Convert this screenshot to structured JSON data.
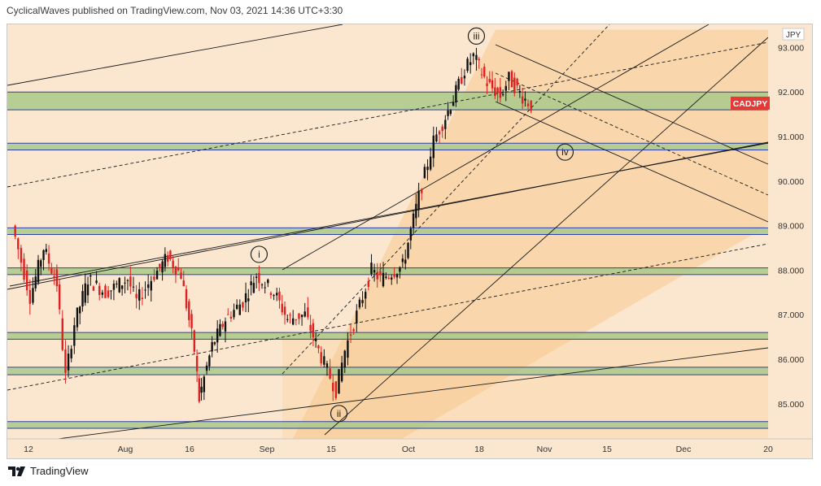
{
  "header": {
    "publisher": "CyclicalWaves published on TradingView.com, Nov 03, 2021 14:36 UTC+3:30"
  },
  "footer": {
    "brand": "TradingView",
    "logo_icon": "tradingview-logo-icon"
  },
  "chart_data": {
    "type": "candlestick",
    "symbol": "CADJPY",
    "currency": "JPY",
    "last_price_label": "CADJPY",
    "colors": {
      "up": "#111111",
      "down": "#e02020",
      "symbol_badge": "#e53935",
      "zone_fill": "#a9c98a",
      "zone_border": "#2d3fa8",
      "background": "#fbe6cf"
    },
    "y_axis": {
      "ylim": [
        84.2,
        93.5
      ],
      "ticks": [
        "93.000",
        "92.000",
        "91.000",
        "90.000",
        "89.000",
        "88.000",
        "87.000",
        "86.000",
        "85.000"
      ],
      "scale": "linear"
    },
    "x_axis": {
      "ticks": [
        "12",
        "Aug",
        "16",
        "Sep",
        "15",
        "Oct",
        "18",
        "Nov",
        "15",
        "Dec",
        "20"
      ]
    },
    "wave_labels": [
      "i",
      "ii",
      "iii",
      "iv"
    ],
    "wave_points": [
      {
        "label": "i",
        "date": "2021-09-02",
        "price": 88.1
      },
      {
        "label": "ii",
        "date": "2021-09-20",
        "price": 85.0
      },
      {
        "label": "iii",
        "date": "2021-10-21",
        "price": 93.0
      },
      {
        "label": "iv",
        "date": "2021-11-10",
        "price": 90.65
      }
    ],
    "support_resistance_zones": [
      [
        91.6,
        92.0
      ],
      [
        90.7,
        90.85
      ],
      [
        88.8,
        88.95
      ],
      [
        87.9,
        88.05
      ],
      [
        86.45,
        86.6
      ],
      [
        85.65,
        85.82
      ],
      [
        84.45,
        84.6
      ]
    ],
    "price_series_approx": [
      {
        "date": "2021-07-09",
        "close": 89.0
      },
      {
        "date": "2021-07-13",
        "close": 87.4
      },
      {
        "date": "2021-07-16",
        "close": 88.5
      },
      {
        "date": "2021-07-19",
        "close": 87.7
      },
      {
        "date": "2021-07-21",
        "close": 85.6
      },
      {
        "date": "2021-07-23",
        "close": 86.8
      },
      {
        "date": "2021-07-26",
        "close": 87.8
      },
      {
        "date": "2021-07-30",
        "close": 87.5
      },
      {
        "date": "2021-08-04",
        "close": 87.8
      },
      {
        "date": "2021-08-06",
        "close": 87.3
      },
      {
        "date": "2021-08-10",
        "close": 87.9
      },
      {
        "date": "2021-08-13",
        "close": 88.3
      },
      {
        "date": "2021-08-16",
        "close": 87.9
      },
      {
        "date": "2021-08-19",
        "close": 86.2
      },
      {
        "date": "2021-08-20",
        "close": 85.1
      },
      {
        "date": "2021-08-23",
        "close": 86.3
      },
      {
        "date": "2021-08-26",
        "close": 86.9
      },
      {
        "date": "2021-08-30",
        "close": 87.3
      },
      {
        "date": "2021-09-02",
        "close": 87.9
      },
      {
        "date": "2021-09-06",
        "close": 87.5
      },
      {
        "date": "2021-09-09",
        "close": 86.9
      },
      {
        "date": "2021-09-13",
        "close": 87.0
      },
      {
        "date": "2021-09-16",
        "close": 86.2
      },
      {
        "date": "2021-09-20",
        "close": 85.3
      },
      {
        "date": "2021-09-22",
        "close": 86.2
      },
      {
        "date": "2021-09-24",
        "close": 86.8
      },
      {
        "date": "2021-09-28",
        "close": 88.0
      },
      {
        "date": "2021-09-30",
        "close": 87.8
      },
      {
        "date": "2021-10-05",
        "close": 88.1
      },
      {
        "date": "2021-10-08",
        "close": 89.4
      },
      {
        "date": "2021-10-12",
        "close": 90.9
      },
      {
        "date": "2021-10-14",
        "close": 91.3
      },
      {
        "date": "2021-10-17",
        "close": 92.0
      },
      {
        "date": "2021-10-19",
        "close": 92.5
      },
      {
        "date": "2021-10-21",
        "close": 92.8
      },
      {
        "date": "2021-10-24",
        "close": 92.2
      },
      {
        "date": "2021-10-27",
        "close": 91.9
      },
      {
        "date": "2021-10-29",
        "close": 92.3
      },
      {
        "date": "2021-11-01",
        "close": 91.9
      },
      {
        "date": "2021-11-03",
        "close": 91.7
      }
    ]
  }
}
